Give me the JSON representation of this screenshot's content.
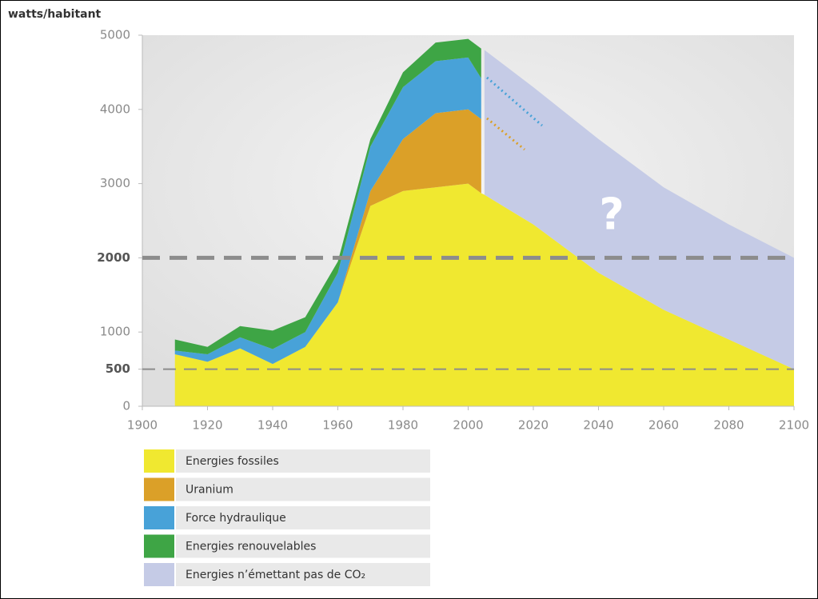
{
  "chart_data": {
    "type": "stacked_area",
    "y_label": "watts/habitant",
    "annotation": "?",
    "x": [
      1910,
      1920,
      1930,
      1940,
      1950,
      1960,
      1970,
      1980,
      1990,
      2000,
      2004,
      2005,
      2020,
      2040,
      2060,
      2080,
      2100
    ],
    "series": [
      {
        "name": "Energies fossiles",
        "color": "#f0e830",
        "values": [
          700,
          600,
          780,
          570,
          800,
          1400,
          2700,
          2900,
          2950,
          3000,
          2870,
          2850,
          2450,
          1800,
          1300,
          900,
          500
        ]
      },
      {
        "name": "Uranium",
        "color": "#dba028",
        "values": [
          0,
          0,
          0,
          0,
          0,
          0,
          200,
          700,
          1000,
          1000,
          1000,
          null,
          null,
          null,
          null,
          null,
          null
        ]
      },
      {
        "name": "Force hydraulique",
        "color": "#48a2d8",
        "values": [
          50,
          100,
          150,
          200,
          200,
          400,
          600,
          700,
          700,
          700,
          550,
          null,
          null,
          null,
          null,
          null,
          null
        ]
      },
      {
        "name": "Energies renouvelables",
        "color": "#3ea545",
        "values": [
          150,
          100,
          150,
          250,
          200,
          150,
          100,
          200,
          250,
          250,
          400,
          null,
          null,
          null,
          null,
          null,
          null
        ]
      },
      {
        "name": "Energies n’émettant pas de CO₂",
        "color": "#c5cbe6",
        "values": [
          null,
          null,
          null,
          null,
          null,
          null,
          null,
          null,
          null,
          null,
          null,
          1950,
          1850,
          1800,
          1650,
          1550,
          1500
        ]
      }
    ],
    "xlim": [
      1900,
      2100
    ],
    "xticks": [
      1900,
      1920,
      1940,
      1960,
      1980,
      2000,
      2020,
      2040,
      2060,
      2080,
      2100
    ],
    "ylim": [
      0,
      5000
    ],
    "yticks": [
      0,
      500,
      1000,
      2000,
      3000,
      4000,
      5000
    ],
    "dashed_lines": [
      500,
      2000
    ]
  }
}
